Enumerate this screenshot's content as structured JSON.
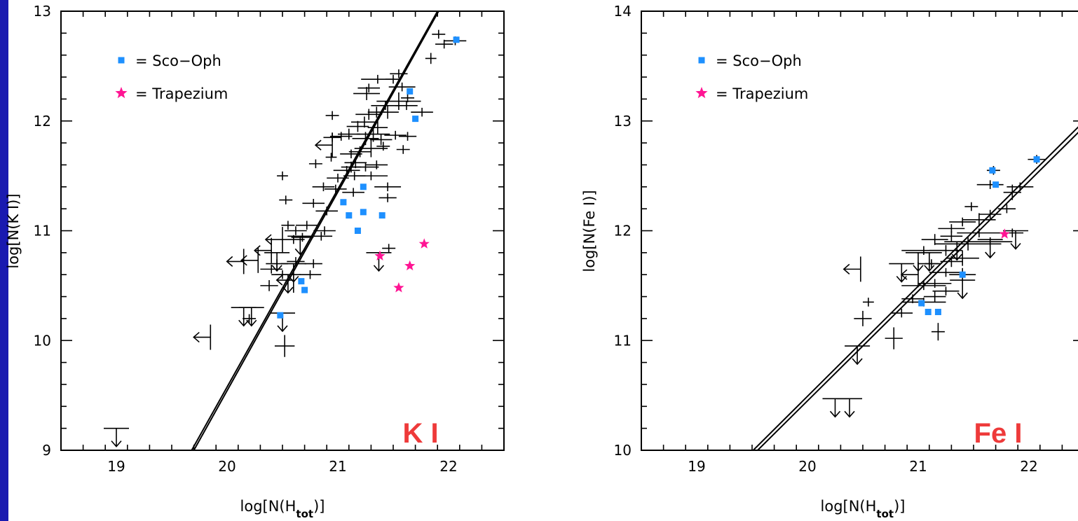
{
  "colors": {
    "background": "#1a1ab0",
    "sco_oph": "#1e90ff",
    "trapezium": "#ff1493",
    "tag": "#ee3a3a"
  },
  "chart_data": [
    {
      "type": "scatter",
      "title": "",
      "tag": "K I",
      "xlabel": "log[N(H",
      "xlabel_sub": "tot",
      "xlabel_end": ")]",
      "ylabel": "log[N(K I)]",
      "xlim": [
        18.5,
        22.5
      ],
      "ylim": [
        9,
        13
      ],
      "xticks": [
        "19",
        "20",
        "21",
        "22"
      ],
      "yticks": [
        "9",
        "10",
        "11",
        "12",
        "13"
      ],
      "legend": {
        "position": "top-left",
        "entries": [
          {
            "marker": "square",
            "label": "=  Sco−Oph"
          },
          {
            "marker": "star",
            "label": "=  Trapezium"
          }
        ]
      },
      "fit_lines": [
        [
          [
            19.68,
            9.0
          ],
          [
            21.9,
            13.0
          ]
        ],
        [
          [
            19.7,
            9.0
          ],
          [
            21.91,
            13.0
          ]
        ]
      ],
      "points": [
        [
          22.06,
          12.73,
          0.1,
          0.04
        ],
        [
          21.96,
          12.7,
          0.08,
          0.04
        ],
        [
          21.91,
          12.79,
          0.06,
          0.04
        ],
        [
          21.84,
          12.57,
          0.05,
          0.05
        ],
        [
          21.55,
          12.43,
          0.08,
          0.04
        ],
        [
          21.5,
          12.38,
          0.07,
          0.04
        ],
        [
          21.58,
          12.31,
          0.12,
          0.04
        ],
        [
          21.36,
          12.38,
          0.15,
          0.04
        ],
        [
          21.28,
          12.3,
          0.1,
          0.04
        ],
        [
          21.26,
          12.25,
          0.12,
          0.06
        ],
        [
          21.63,
          12.21,
          0.06,
          0.04
        ],
        [
          21.55,
          12.18,
          0.2,
          0.08
        ],
        [
          21.62,
          12.14,
          0.1,
          0.04
        ],
        [
          21.43,
          12.14,
          0.13,
          0.04
        ],
        [
          21.45,
          12.08,
          0.1,
          0.06
        ],
        [
          21.28,
          12.06,
          0.12,
          0.05
        ],
        [
          21.35,
          12.08,
          0.08,
          0.05
        ],
        [
          21.24,
          11.99,
          0.12,
          0.05
        ],
        [
          21.18,
          11.95,
          0.1,
          0.05
        ],
        [
          21.36,
          11.94,
          0.09,
          0.06
        ],
        [
          21.32,
          11.88,
          0.15,
          0.07
        ],
        [
          21.25,
          11.84,
          0.12,
          0.06
        ],
        [
          21.39,
          11.83,
          0.1,
          0.05
        ],
        [
          21.1,
          11.88,
          0.1,
          0.05
        ],
        [
          21.03,
          11.86,
          0.1,
          0.04
        ],
        [
          20.95,
          11.85,
          0.08,
          0.04
        ],
        [
          21.52,
          11.87,
          0.1,
          0.04
        ],
        [
          21.3,
          11.75,
          0.15,
          0.08
        ],
        [
          21.2,
          11.72,
          0.1,
          0.05
        ],
        [
          21.12,
          11.7,
          0.1,
          0.04
        ],
        [
          21.16,
          11.62,
          0.1,
          0.05
        ],
        [
          21.12,
          11.58,
          0.09,
          0.05
        ],
        [
          21.25,
          11.58,
          0.12,
          0.04
        ],
        [
          21.35,
          11.6,
          0.1,
          0.04
        ],
        [
          21.08,
          11.55,
          0.12,
          0.04
        ],
        [
          21.15,
          11.5,
          0.1,
          0.04
        ],
        [
          21.3,
          11.5,
          0.15,
          0.04
        ],
        [
          21.0,
          11.48,
          0.1,
          0.04
        ],
        [
          20.87,
          11.4,
          0.1,
          0.04
        ],
        [
          21.45,
          11.4,
          0.12,
          0.04
        ],
        [
          20.98,
          11.38,
          0.1,
          0.04
        ],
        [
          21.14,
          11.35,
          0.1,
          0.04
        ],
        [
          20.78,
          11.25,
          0.1,
          0.04
        ],
        [
          21.45,
          11.3,
          0.08,
          0.04
        ],
        [
          20.9,
          11.18,
          0.1,
          0.04
        ],
        [
          20.72,
          11.05,
          0.1,
          0.04
        ],
        [
          20.88,
          11.0,
          0.1,
          0.04
        ],
        [
          20.85,
          10.95,
          0.1,
          0.04
        ],
        [
          20.68,
          10.94,
          0.1,
          0.04
        ],
        [
          20.6,
          10.92,
          0.1,
          0.04
        ],
        [
          20.62,
          11.0,
          0.1,
          0.04
        ],
        [
          20.55,
          11.05,
          0.06,
          0.04
        ],
        [
          20.45,
          10.7,
          0.1,
          0.04
        ],
        [
          20.4,
          10.65,
          0.1,
          0.04
        ],
        [
          20.5,
          10.6,
          0.1,
          0.04
        ],
        [
          20.62,
          10.72,
          0.08,
          0.04
        ],
        [
          20.75,
          10.6,
          0.1,
          0.04
        ],
        [
          20.38,
          10.5,
          0.08,
          0.05
        ],
        [
          20.78,
          10.7,
          0.08,
          0.04
        ],
        [
          20.2,
          10.2,
          0.06,
          0.04
        ],
        [
          21.46,
          10.84,
          0.06,
          0.04
        ],
        [
          21.63,
          11.86,
          0.08,
          0.04
        ],
        [
          21.59,
          11.74,
          0.06,
          0.04
        ],
        [
          20.95,
          12.05,
          0.06,
          0.04
        ],
        [
          20.94,
          11.67,
          0.05,
          0.04
        ],
        [
          20.8,
          11.61,
          0.06,
          0.04
        ],
        [
          21.41,
          11.77,
          0.06,
          0.04
        ],
        [
          20.53,
          11.28,
          0.06,
          0.04
        ],
        [
          20.5,
          11.5,
          0.05,
          0.04
        ],
        [
          21.76,
          12.08,
          0.1,
          0.04
        ],
        [
          20.52,
          9.95,
          0.09,
          0.1
        ]
      ],
      "upper_limits": [
        [
          20.66,
          10.95
        ],
        [
          20.45,
          10.8
        ],
        [
          20.6,
          10.7
        ],
        [
          20.15,
          10.3
        ],
        [
          20.5,
          10.25
        ],
        [
          20.55,
          10.6
        ],
        [
          21.37,
          10.8
        ],
        [
          19.0,
          9.2
        ],
        [
          20.22,
          10.3
        ]
      ],
      "left_limits": [
        [
          19.85,
          10.03
        ],
        [
          20.95,
          11.78
        ],
        [
          20.15,
          10.72
        ],
        [
          20.4,
          10.82
        ],
        [
          20.5,
          10.92
        ],
        [
          20.28,
          10.73
        ],
        [
          20.6,
          10.55
        ]
      ],
      "sco_oph": [
        [
          22.07,
          12.74
        ],
        [
          21.65,
          12.27
        ],
        [
          21.7,
          12.02
        ],
        [
          21.23,
          11.4
        ],
        [
          21.05,
          11.26
        ],
        [
          21.1,
          11.14
        ],
        [
          21.23,
          11.17
        ],
        [
          21.4,
          11.14
        ],
        [
          21.18,
          11.0
        ],
        [
          20.67,
          10.54
        ],
        [
          20.7,
          10.46
        ],
        [
          20.48,
          10.23
        ]
      ],
      "trapezium": [
        [
          21.78,
          10.88
        ],
        [
          21.38,
          10.77
        ],
        [
          21.65,
          10.68
        ],
        [
          21.55,
          10.48
        ]
      ]
    },
    {
      "type": "scatter",
      "title": "",
      "tag": "Fe I",
      "xlabel": "log[N(H",
      "xlabel_sub": "tot",
      "xlabel_end": ")]",
      "ylabel": "log[N(Fe I)]",
      "xlim": [
        18.5,
        22.5
      ],
      "ylim": [
        10,
        14
      ],
      "xticks": [
        "19",
        "20",
        "21",
        "22"
      ],
      "yticks": [
        "10",
        "11",
        "12",
        "13",
        "14"
      ],
      "legend": {
        "position": "top-left",
        "entries": [
          {
            "marker": "square",
            "label": "=  Sco−Oph"
          },
          {
            "marker": "star",
            "label": "=  Trapezium"
          }
        ]
      },
      "fit_lines": [
        [
          [
            19.51,
            10.0
          ],
          [
            22.55,
            13.05
          ]
        ],
        [
          [
            19.55,
            10.0
          ],
          [
            22.55,
            13.0
          ]
        ]
      ],
      "points": [
        [
          22.07,
          12.65,
          0.08,
          0.04
        ],
        [
          21.92,
          12.4,
          0.12,
          0.04
        ],
        [
          21.85,
          12.35,
          0.08,
          0.07
        ],
        [
          21.8,
          12.2,
          0.08,
          0.04
        ],
        [
          21.65,
          12.15,
          0.1,
          0.04
        ],
        [
          21.48,
          12.22,
          0.06,
          0.04
        ],
        [
          21.55,
          12.1,
          0.15,
          0.06
        ],
        [
          21.4,
          12.08,
          0.12,
          0.04
        ],
        [
          21.3,
          12.02,
          0.12,
          0.04
        ],
        [
          21.55,
          11.98,
          0.2,
          0.04
        ],
        [
          21.3,
          11.95,
          0.1,
          0.05
        ],
        [
          21.15,
          11.92,
          0.12,
          0.05
        ],
        [
          21.45,
          11.88,
          0.3,
          0.06
        ],
        [
          21.65,
          11.9,
          0.2,
          0.04
        ],
        [
          21.25,
          11.82,
          0.15,
          0.05
        ],
        [
          21.05,
          11.82,
          0.2,
          0.04
        ],
        [
          21.4,
          11.75,
          0.15,
          0.07
        ],
        [
          21.3,
          11.72,
          0.1,
          0.05
        ],
        [
          21.1,
          11.7,
          0.1,
          0.04
        ],
        [
          21.25,
          11.62,
          0.15,
          0.04
        ],
        [
          21.4,
          11.6,
          0.12,
          0.06
        ],
        [
          21.15,
          11.52,
          0.15,
          0.04
        ],
        [
          21.05,
          11.5,
          0.2,
          0.04
        ],
        [
          21.25,
          11.45,
          0.12,
          0.04
        ],
        [
          21.15,
          11.4,
          0.1,
          0.05
        ],
        [
          20.95,
          11.38,
          0.1,
          0.04
        ],
        [
          20.85,
          11.25,
          0.1,
          0.04
        ],
        [
          20.55,
          11.35,
          0.05,
          0.04
        ],
        [
          20.5,
          11.2,
          0.08,
          0.07
        ],
        [
          20.78,
          11.02,
          0.08,
          0.1
        ],
        [
          21.18,
          11.08,
          0.06,
          0.08
        ],
        [
          21.05,
          11.35,
          0.2,
          0.04
        ],
        [
          21.65,
          12.42,
          0.12,
          0.04
        ],
        [
          21.68,
          12.55,
          0.06,
          0.04
        ],
        [
          21.85,
          11.98,
          0.1,
          0.04
        ],
        [
          21.12,
          11.7,
          0.06,
          0.04
        ]
      ],
      "upper_limits": [
        [
          20.45,
          10.95
        ],
        [
          20.25,
          10.47
        ],
        [
          20.38,
          10.47
        ],
        [
          21.0,
          11.8
        ],
        [
          21.1,
          11.8
        ],
        [
          20.85,
          11.7
        ],
        [
          21.35,
          11.9
        ],
        [
          21.65,
          11.92
        ],
        [
          21.88,
          12.0
        ],
        [
          21.4,
          11.55
        ]
      ],
      "left_limits": [
        [
          20.48,
          11.65
        ],
        [
          21.0,
          11.6
        ]
      ],
      "sco_oph": [
        [
          22.07,
          12.65
        ],
        [
          21.67,
          12.55
        ],
        [
          21.7,
          12.42
        ],
        [
          21.4,
          11.6
        ],
        [
          21.03,
          11.34
        ],
        [
          21.09,
          11.26
        ],
        [
          21.18,
          11.26
        ]
      ],
      "trapezium": [
        [
          21.78,
          11.97
        ]
      ]
    }
  ]
}
